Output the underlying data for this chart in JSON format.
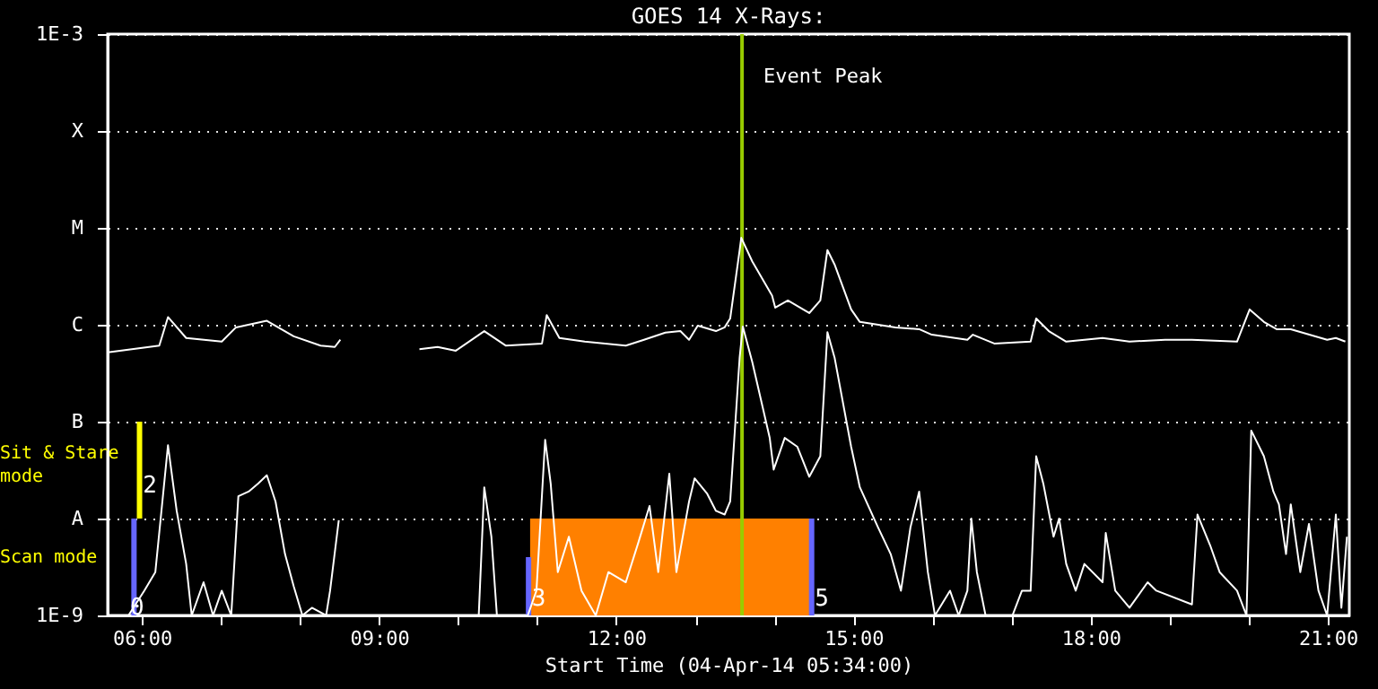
{
  "chart_data": {
    "type": "line",
    "title": "GOES 14 X-Rays:",
    "xlabel": "Start Time (04-Apr-14 05:34:00)",
    "xlim": [
      5.567,
      21.27
    ],
    "xticks": [
      {
        "value": 6,
        "label": "06:00"
      },
      {
        "value": 7,
        "label": null
      },
      {
        "value": 8,
        "label": null
      },
      {
        "value": 9,
        "label": "09:00"
      },
      {
        "value": 10,
        "label": null
      },
      {
        "value": 11,
        "label": null
      },
      {
        "value": 12,
        "label": "12:00"
      },
      {
        "value": 13,
        "label": null
      },
      {
        "value": 14,
        "label": null
      },
      {
        "value": 15,
        "label": "15:00"
      },
      {
        "value": 16,
        "label": null
      },
      {
        "value": 17,
        "label": null
      },
      {
        "value": 18,
        "label": "18:00"
      },
      {
        "value": 19,
        "label": null
      },
      {
        "value": 20,
        "label": null
      },
      {
        "value": 21,
        "label": "21:00"
      }
    ],
    "ylim": [
      1e-09,
      0.001
    ],
    "log": true,
    "yticks": [
      {
        "value": 1e-09,
        "label": "1E-9"
      },
      {
        "value": 1e-08,
        "label": "A"
      },
      {
        "value": 1e-07,
        "label": "B"
      },
      {
        "value": 1e-06,
        "label": "C"
      },
      {
        "value": 1e-05,
        "label": "M"
      },
      {
        "value": 0.0001,
        "label": "X"
      },
      {
        "value": 0.001,
        "label": "1E-3"
      }
    ],
    "grid": "y",
    "series": [
      {
        "type": "area",
        "color": "#ff8000",
        "x": [
          10.91,
          14.44
        ],
        "values": [
          1e-08,
          1e-08
        ]
      },
      {
        "color": "#6666ff",
        "x": [
          5.9,
          5.9
        ],
        "values": [
          1e-09,
          1e-08
        ]
      },
      {
        "color": "#6666ff",
        "x": [
          10.89,
          10.89
        ],
        "values": [
          1e-09,
          4e-09
        ]
      },
      {
        "color": "#6666ff",
        "x": [
          14.47,
          14.47
        ],
        "values": [
          1e-09,
          1e-08
        ]
      },
      {
        "color": "#ffff00",
        "x": [
          5.97,
          5.97
        ],
        "values": [
          1e-08,
          1e-07
        ]
      },
      {
        "color": "#ffffff",
        "x": [
          5.57,
          6.22,
          6.33,
          6.56,
          7.01,
          7.19,
          7.58,
          7.92,
          8.26,
          8.44,
          8.51,
          9.0,
          9.51,
          9.74,
          9.97,
          10.33,
          10.6,
          11.06,
          11.12,
          11.28,
          11.6,
          12.12,
          12.35,
          12.62,
          12.81,
          12.92,
          13.03,
          13.26,
          13.37,
          13.44,
          13.56,
          13.58,
          13.72,
          13.97,
          14.01,
          14.17,
          14.44,
          14.58,
          14.67,
          14.76,
          14.97,
          15.08,
          15.53,
          15.83,
          15.99,
          16.44,
          16.51,
          16.78,
          17.24,
          17.31,
          17.47,
          17.69,
          18.15,
          18.49,
          18.94,
          19.28,
          19.85,
          20.01,
          20.19,
          20.35,
          20.53,
          20.99,
          21.1,
          21.22
        ],
        "values": [
          5.2e-07,
          6.1e-07,
          1.2e-06,
          7.3e-07,
          6.7e-07,
          9.4e-07,
          1.1e-06,
          7.6e-07,
          6.1e-07,
          5.9e-07,
          7e-07,
          null,
          5.6e-07,
          5.9e-07,
          5.4e-07,
          8.6e-07,
          6.1e-07,
          6.4e-07,
          1.26e-06,
          7.3e-07,
          6.7e-07,
          6.1e-07,
          7e-07,
          8.3e-07,
          8.6e-07,
          7e-07,
          9.8e-07,
          8.6e-07,
          9.4e-07,
          1.16e-06,
          5.9e-06,
          7.9e-06,
          4.5e-06,
          2e-06,
          1.5e-06,
          1.78e-06,
          1.32e-06,
          1.78e-06,
          5.9e-06,
          4.2e-06,
          1.44e-06,
          1.07e-06,
          9.4e-07,
          9e-07,
          7.9e-07,
          7e-07,
          7.9e-07,
          6.4e-07,
          6.7e-07,
          1.16e-06,
          8.6e-07,
          6.7e-07,
          7.3e-07,
          6.7e-07,
          7e-07,
          7e-07,
          6.7e-07,
          1.44e-06,
          1.07e-06,
          9e-07,
          9e-07,
          7e-07,
          7.3e-07,
          6.7e-07
        ]
      },
      {
        "color": "#ffffff",
        "x": [
          5.72,
          5.83,
          6.03,
          6.17,
          6.33,
          6.44,
          6.56,
          6.63,
          6.78,
          6.9,
          7.01,
          7.13,
          7.22,
          7.35,
          7.47,
          7.58,
          7.69,
          7.81,
          7.92,
          8.03,
          8.15,
          8.33,
          8.38,
          8.49,
          9.5,
          10.26,
          10.33,
          10.42,
          10.49,
          10.88,
          10.99,
          11.1,
          11.17,
          11.26,
          11.4,
          11.56,
          11.74,
          11.9,
          12.12,
          12.28,
          12.42,
          12.53,
          12.67,
          12.76,
          12.92,
          12.99,
          13.15,
          13.26,
          13.37,
          13.44,
          13.56,
          13.6,
          13.72,
          13.94,
          13.99,
          14.13,
          14.29,
          14.44,
          14.58,
          14.67,
          14.76,
          14.97,
          15.08,
          15.31,
          15.47,
          15.6,
          15.72,
          15.83,
          15.94,
          16.03,
          16.22,
          16.33,
          16.44,
          16.49,
          16.56,
          16.67,
          17.01,
          17.13,
          17.24,
          17.31,
          17.4,
          17.53,
          17.6,
          17.69,
          17.81,
          17.92,
          18.15,
          18.19,
          18.31,
          18.49,
          18.72,
          18.83,
          19.28,
          19.35,
          19.51,
          19.63,
          19.85,
          19.97,
          20.03,
          20.19,
          20.31,
          20.38,
          20.47,
          20.53,
          20.65,
          20.76,
          20.88,
          20.99,
          21.1,
          21.17,
          21.24
        ],
        "values": [
          1e-09,
          1e-09,
          1.8e-09,
          2.8e-09,
          5.7e-08,
          1.2e-08,
          3.4e-09,
          1e-09,
          2.2e-09,
          1e-09,
          1.8e-09,
          1e-09,
          1.7e-08,
          1.9e-08,
          2.3e-08,
          2.8e-08,
          1.5e-08,
          4.3e-09,
          2e-09,
          1e-09,
          1.2e-09,
          1e-09,
          1.8e-09,
          9.6e-09,
          null,
          1e-09,
          2.1e-08,
          6.5e-09,
          1e-09,
          1e-09,
          1.8e-09,
          6.5e-08,
          2.3e-08,
          2.8e-09,
          6.5e-09,
          1.8e-09,
          1e-09,
          2.8e-09,
          2.2e-09,
          5.7e-09,
          1.35e-08,
          2.8e-09,
          2.9e-08,
          2.8e-09,
          1.5e-08,
          2.6e-08,
          1.8e-08,
          1.2e-08,
          1.1e-08,
          1.5e-08,
          4.6e-07,
          9.6e-07,
          4.1e-07,
          6.8e-08,
          3.2e-08,
          6.8e-08,
          5.5e-08,
          2.7e-08,
          4.4e-08,
          8.4e-07,
          4.6e-07,
          5.5e-08,
          2.1e-08,
          8.1e-09,
          4.3e-09,
          1.8e-09,
          8.1e-09,
          1.9e-08,
          2.8e-09,
          1e-09,
          1.8e-09,
          1e-09,
          1.8e-09,
          1e-08,
          2.8e-09,
          1e-09,
          1e-09,
          1.8e-09,
          1.8e-09,
          4.4e-08,
          2.3e-08,
          6.5e-09,
          1e-08,
          3.4e-09,
          1.8e-09,
          3.4e-09,
          2.2e-09,
          7.1e-09,
          1.8e-09,
          1.2e-09,
          2.2e-09,
          1.8e-09,
          1.3e-09,
          1.1e-08,
          5.3e-09,
          2.8e-09,
          1.8e-09,
          1e-09,
          8.1e-08,
          4.4e-08,
          1.9e-08,
          1.4e-08,
          4.3e-09,
          1.4e-08,
          2.8e-09,
          8.8e-09,
          1.8e-09,
          1e-09,
          1.1e-08,
          1.2e-09,
          6.5e-09
        ]
      }
    ],
    "ref_lines": [
      {
        "axis": "x",
        "value": 13.59,
        "label": "Event Peak",
        "color": "#99cc00"
      }
    ],
    "annotations": [
      {
        "text": "0",
        "x": 5.94,
        "y": 1.2e-09
      },
      {
        "text": "2",
        "x": 6.1,
        "y": 2.2e-08
      },
      {
        "text": "3",
        "x": 11.02,
        "y": 1.5e-09
      },
      {
        "text": "5",
        "x": 14.6,
        "y": 1.5e-09
      },
      "Sit & Stare mode",
      "Scan mode"
    ]
  }
}
